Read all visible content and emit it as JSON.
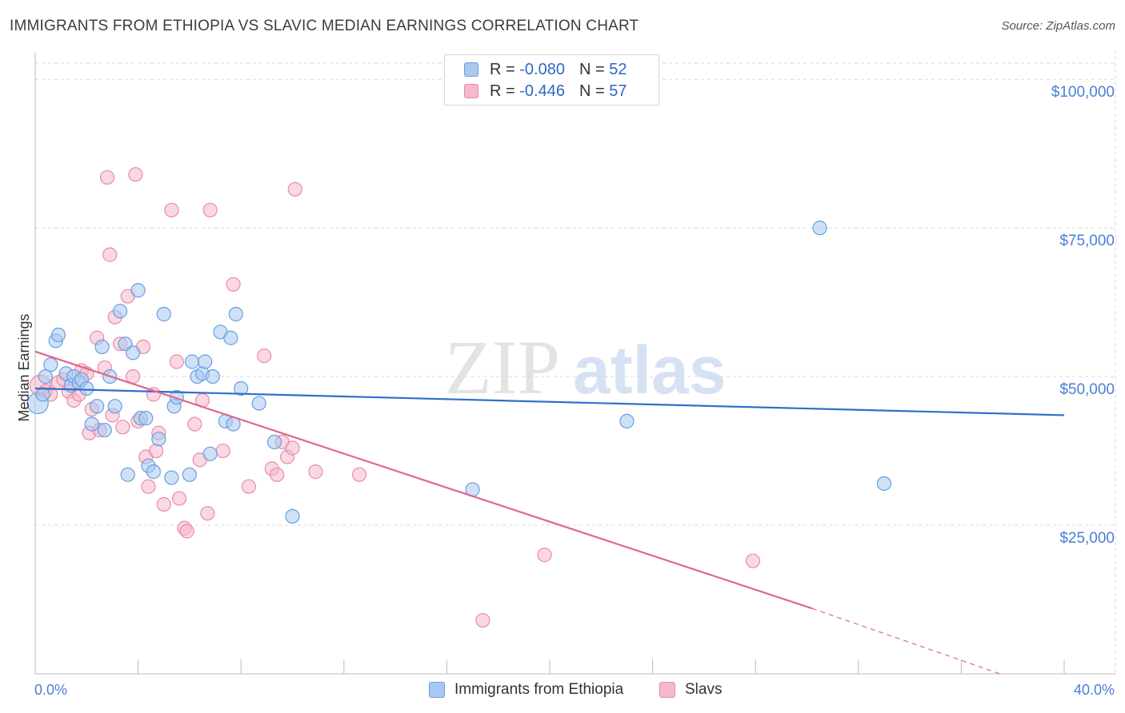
{
  "title": "IMMIGRANTS FROM ETHIOPIA VS SLAVIC MEDIAN EARNINGS CORRELATION CHART",
  "source": "Source: ZipAtlas.com",
  "watermark": {
    "zip": "ZIP",
    "atlas": "atlas"
  },
  "legend": {
    "rows": [
      {
        "r_label": "R =",
        "r_value": "-0.080",
        "n_label": "N =",
        "n_value": "52",
        "color": "#a8c8f0"
      },
      {
        "r_label": "R =",
        "r_value": "-0.446",
        "n_label": "N =",
        "n_value": "57",
        "color": "#f6b8cb"
      }
    ]
  },
  "bottom_legend": {
    "items": [
      {
        "label": "Immigrants from Ethiopia",
        "color": "#a8c8f0"
      },
      {
        "label": "Slavs",
        "color": "#f6b8cb"
      }
    ]
  },
  "colors": {
    "blue_fill": "#a8c8f0",
    "blue_stroke": "#6a9ee0",
    "blue_line": "#2f6fca",
    "pink_fill": "#f6b8cb",
    "pink_stroke": "#e98aaa",
    "pink_line": "#e0678f",
    "axis_text": "#4a7fd4",
    "grid": "#d9d9d9"
  },
  "chart_data": {
    "type": "scatter",
    "title": "IMMIGRANTS FROM ETHIOPIA VS SLAVIC MEDIAN EARNINGS CORRELATION CHART",
    "xlabel": "",
    "ylabel": "Median Earnings",
    "xlim": [
      0,
      40
    ],
    "ylim": [
      0,
      105000
    ],
    "x_tick_labels": [
      "0.0%",
      "40.0%"
    ],
    "y_ticks": [
      25000,
      50000,
      75000,
      100000
    ],
    "y_tick_labels": [
      "$25,000",
      "$50,000",
      "$75,000",
      "$100,000"
    ],
    "grid": true,
    "series": [
      {
        "name": "Immigrants from Ethiopia",
        "points": [
          [
            0.1,
            45500
          ],
          [
            0.3,
            47000
          ],
          [
            0.4,
            50000
          ],
          [
            0.6,
            52000
          ],
          [
            0.8,
            56000
          ],
          [
            0.9,
            57000
          ],
          [
            1.2,
            50500
          ],
          [
            1.4,
            48500
          ],
          [
            1.5,
            50000
          ],
          [
            1.7,
            49000
          ],
          [
            1.8,
            49500
          ],
          [
            2.0,
            48000
          ],
          [
            2.2,
            42000
          ],
          [
            2.4,
            45000
          ],
          [
            2.6,
            55000
          ],
          [
            2.7,
            41000
          ],
          [
            2.9,
            50000
          ],
          [
            3.1,
            45000
          ],
          [
            3.3,
            61000
          ],
          [
            3.5,
            55500
          ],
          [
            3.6,
            33500
          ],
          [
            3.8,
            54000
          ],
          [
            4.0,
            64500
          ],
          [
            4.1,
            43000
          ],
          [
            4.3,
            43000
          ],
          [
            4.4,
            35000
          ],
          [
            4.6,
            34000
          ],
          [
            4.8,
            39500
          ],
          [
            5.0,
            60500
          ],
          [
            5.3,
            33000
          ],
          [
            5.4,
            45000
          ],
          [
            5.5,
            46500
          ],
          [
            6.0,
            33500
          ],
          [
            6.1,
            52500
          ],
          [
            6.3,
            50000
          ],
          [
            6.5,
            50500
          ],
          [
            6.6,
            52500
          ],
          [
            6.8,
            37000
          ],
          [
            6.9,
            50000
          ],
          [
            7.2,
            57500
          ],
          [
            7.4,
            42500
          ],
          [
            7.6,
            56500
          ],
          [
            7.7,
            42000
          ],
          [
            7.8,
            60500
          ],
          [
            8.0,
            48000
          ],
          [
            8.7,
            45500
          ],
          [
            9.3,
            39000
          ],
          [
            10.0,
            26500
          ],
          [
            17.0,
            31000
          ],
          [
            23.0,
            42500
          ],
          [
            30.5,
            75000
          ],
          [
            33.0,
            32000
          ]
        ]
      },
      {
        "name": "Slavs",
        "points": [
          [
            0.2,
            48500
          ],
          [
            0.4,
            47500
          ],
          [
            0.6,
            47000
          ],
          [
            0.9,
            49000
          ],
          [
            1.1,
            49500
          ],
          [
            1.3,
            47500
          ],
          [
            1.5,
            46000
          ],
          [
            1.7,
            47000
          ],
          [
            1.8,
            51000
          ],
          [
            2.0,
            50500
          ],
          [
            2.1,
            40500
          ],
          [
            2.2,
            44500
          ],
          [
            2.4,
            56500
          ],
          [
            2.5,
            41000
          ],
          [
            2.7,
            51500
          ],
          [
            2.8,
            83500
          ],
          [
            2.9,
            70500
          ],
          [
            3.0,
            43500
          ],
          [
            3.1,
            60000
          ],
          [
            3.3,
            55500
          ],
          [
            3.4,
            41500
          ],
          [
            3.6,
            63500
          ],
          [
            3.8,
            50000
          ],
          [
            3.9,
            84000
          ],
          [
            4.0,
            42500
          ],
          [
            4.2,
            55000
          ],
          [
            4.3,
            36500
          ],
          [
            4.4,
            31500
          ],
          [
            4.6,
            47000
          ],
          [
            4.7,
            37500
          ],
          [
            4.8,
            40500
          ],
          [
            5.0,
            28500
          ],
          [
            5.3,
            78000
          ],
          [
            5.5,
            52500
          ],
          [
            5.6,
            29500
          ],
          [
            5.8,
            24500
          ],
          [
            5.9,
            24000
          ],
          [
            6.2,
            42000
          ],
          [
            6.4,
            36000
          ],
          [
            6.5,
            46000
          ],
          [
            6.7,
            27000
          ],
          [
            6.8,
            78000
          ],
          [
            7.3,
            37500
          ],
          [
            7.7,
            65500
          ],
          [
            8.3,
            31500
          ],
          [
            8.9,
            53500
          ],
          [
            9.2,
            34500
          ],
          [
            9.4,
            33500
          ],
          [
            9.6,
            39000
          ],
          [
            9.8,
            36500
          ],
          [
            10.0,
            38000
          ],
          [
            10.1,
            81500
          ],
          [
            10.9,
            34000
          ],
          [
            12.6,
            33500
          ],
          [
            19.8,
            20000
          ],
          [
            17.4,
            9000
          ],
          [
            27.9,
            19000
          ]
        ]
      }
    ],
    "trend_lines": [
      {
        "series": "Immigrants from Ethiopia",
        "x": [
          0,
          40
        ],
        "y": [
          48000,
          43500
        ]
      },
      {
        "series": "Slavs",
        "x": [
          0,
          30.2,
          37.5
        ],
        "y": [
          54200,
          11000,
          0
        ]
      }
    ]
  }
}
